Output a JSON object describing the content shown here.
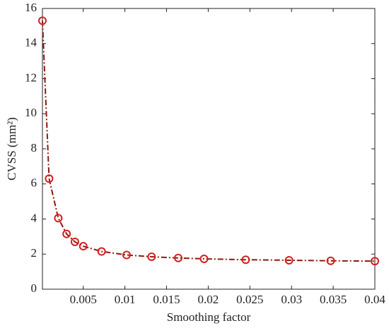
{
  "chart_data": {
    "type": "line",
    "x_label": "Smoothing factor",
    "y_label": "CVSS (mm²)",
    "x": [
      0.0001,
      0.0009,
      0.002,
      0.003,
      0.004,
      0.005,
      0.0072,
      0.0102,
      0.0132,
      0.0164,
      0.0195,
      0.0245,
      0.0297,
      0.0347,
      0.04
    ],
    "series": [
      {
        "color": "#d42020",
        "line_color": "#8b1a10",
        "values": [
          15.3,
          6.3,
          4.05,
          3.15,
          2.7,
          2.45,
          2.15,
          1.95,
          1.85,
          1.78,
          1.73,
          1.68,
          1.65,
          1.62,
          1.6
        ]
      }
    ],
    "xlim": [
      0.0001,
      0.04
    ],
    "xticks": [
      0.005,
      0.01,
      0.015,
      0.02,
      0.025,
      0.03,
      0.035,
      0.04
    ],
    "ylim": [
      0,
      16
    ],
    "yticks": [
      0,
      2,
      4,
      6,
      8,
      10,
      12,
      14,
      16
    ]
  }
}
